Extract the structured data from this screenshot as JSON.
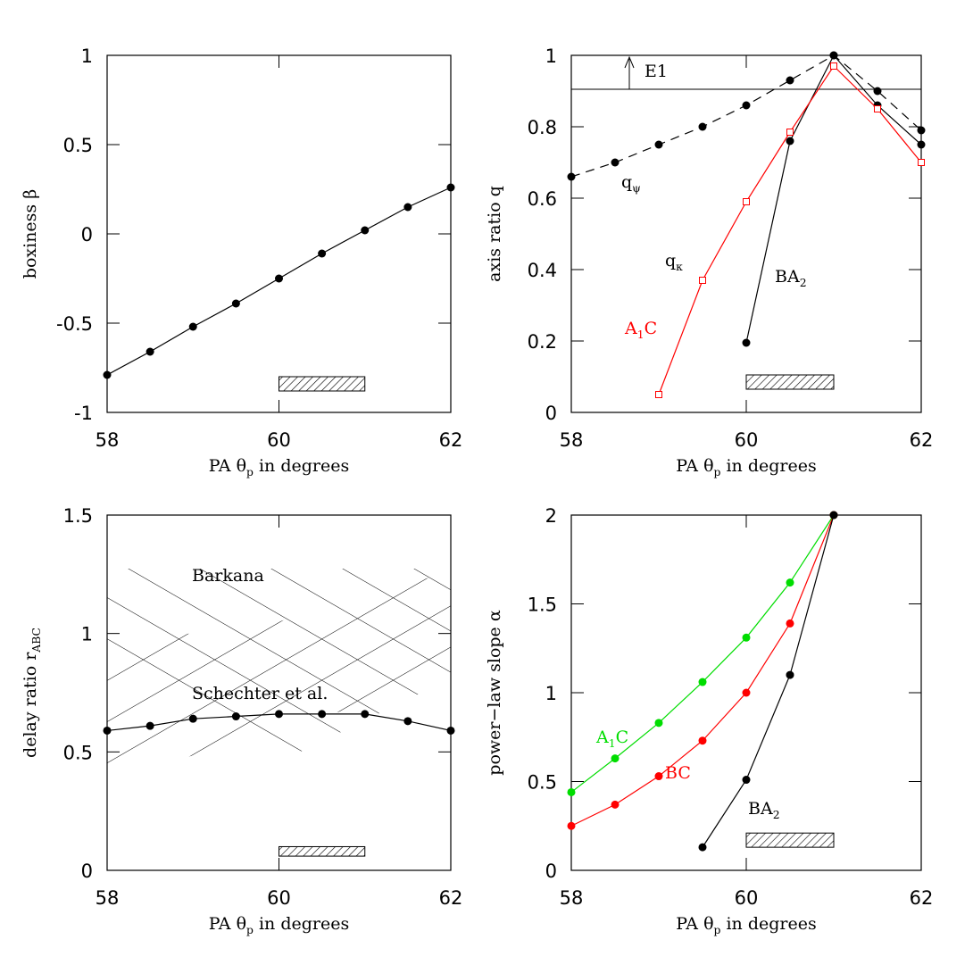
{
  "chart_data": [
    {
      "type": "line",
      "xlabel": {
        "text": "PA θ",
        "sub": "p",
        "after": " in degrees"
      },
      "ylabel": {
        "text": "boxiness  β"
      },
      "xlim": [
        58,
        62
      ],
      "ylim": [
        -1,
        1
      ],
      "xticks": [
        58,
        60,
        62
      ],
      "yticks": [
        -1,
        -0.5,
        0,
        0.5,
        1
      ],
      "series": [
        {
          "color": "#000000",
          "marker": "circle",
          "x": [
            58,
            58.5,
            59,
            59.5,
            60,
            60.5,
            61,
            61.5,
            62
          ],
          "values": [
            -0.79,
            -0.66,
            -0.52,
            -0.39,
            -0.25,
            -0.11,
            0.02,
            0.15,
            0.26
          ]
        }
      ],
      "hatched_box": {
        "x": [
          60,
          61
        ],
        "y": [
          -0.88,
          -0.8
        ]
      },
      "annotations": []
    },
    {
      "type": "line",
      "xlabel": {
        "text": "PA θ",
        "sub": "p",
        "after": " in degrees"
      },
      "ylabel": {
        "text": "axis ratio  q"
      },
      "xlim": [
        58,
        62
      ],
      "ylim": [
        0,
        1
      ],
      "xticks": [
        58,
        60,
        62
      ],
      "yticks": [
        0,
        0.2,
        0.4,
        0.6,
        0.8,
        1
      ],
      "hline": 0.905,
      "series": [
        {
          "color": "#000000",
          "marker": "circle",
          "dashed": true,
          "x": [
            58,
            58.5,
            59,
            59.5,
            60,
            60.5,
            61,
            61.5,
            62
          ],
          "values": [
            0.66,
            0.7,
            0.75,
            0.8,
            0.86,
            0.93,
            1.0,
            0.9,
            0.79
          ]
        },
        {
          "color": "#000000",
          "marker": "circle",
          "x": [
            60,
            60.5,
            61,
            61.5,
            62
          ],
          "values": [
            0.195,
            0.76,
            1.0,
            0.86,
            0.75
          ]
        },
        {
          "color": "#ff0000",
          "marker": "square",
          "x": [
            59,
            59.5,
            60,
            60.5,
            61,
            61.5,
            62
          ],
          "values": [
            0.05,
            0.37,
            0.59,
            0.785,
            0.97,
            0.85,
            0.7
          ]
        }
      ],
      "hatched_box": {
        "x": [
          60,
          61
        ],
        "y": [
          0.065,
          0.105
        ]
      },
      "annotations": [
        {
          "text": "E1",
          "color": "#000000"
        },
        {
          "text": "q",
          "sub": "ψ",
          "color": "#000000"
        },
        {
          "text": "q",
          "sub": "κ",
          "color": "#000000"
        },
        {
          "text": "BA",
          "sub": "2",
          "color": "#000000"
        },
        {
          "text": "A",
          "sub": "1",
          "after": "C",
          "color": "#ff0000"
        }
      ]
    },
    {
      "type": "line",
      "xlabel": {
        "text": "PA θ",
        "sub": "p",
        "after": " in degrees"
      },
      "ylabel": {
        "text": "delay ratio  r",
        "sub": "ABC"
      },
      "xlim": [
        58,
        62
      ],
      "ylim": [
        0,
        1.5
      ],
      "xticks": [
        58,
        60,
        62
      ],
      "yticks": [
        0,
        0.5,
        1,
        1.5
      ],
      "series": [
        {
          "color": "#000000",
          "marker": "circle",
          "x": [
            58,
            58.5,
            59,
            59.5,
            60,
            60.5,
            61,
            61.5,
            62
          ],
          "values": [
            0.59,
            0.61,
            0.64,
            0.65,
            0.66,
            0.66,
            0.66,
            0.63,
            0.59
          ]
        }
      ],
      "hatched_box": {
        "x": [
          60,
          61
        ],
        "y": [
          0.06,
          0.1
        ]
      },
      "annotations": [
        {
          "text": "Barkana",
          "color": "#000000"
        },
        {
          "text": "Schechter et al.",
          "color": "#000000"
        }
      ]
    },
    {
      "type": "line",
      "xlabel": {
        "text": "PA θ",
        "sub": "p",
        "after": " in degrees"
      },
      "ylabel": {
        "text": "power−law slope  α"
      },
      "xlim": [
        58,
        62
      ],
      "ylim": [
        0,
        2
      ],
      "xticks": [
        58,
        60,
        62
      ],
      "yticks": [
        0,
        0.5,
        1,
        1.5,
        2
      ],
      "series": [
        {
          "color": "#00dd00",
          "marker": "circle",
          "x": [
            58,
            58.5,
            59,
            59.5,
            60,
            60.5,
            61
          ],
          "values": [
            0.44,
            0.63,
            0.83,
            1.06,
            1.31,
            1.62,
            2.0
          ]
        },
        {
          "color": "#ff0000",
          "marker": "circle",
          "x": [
            58,
            58.5,
            59,
            59.5,
            60,
            60.5,
            61
          ],
          "values": [
            0.25,
            0.37,
            0.53,
            0.73,
            1.0,
            1.39,
            2.0
          ]
        },
        {
          "color": "#000000",
          "marker": "circle",
          "x": [
            59.5,
            60,
            60.5,
            61
          ],
          "values": [
            0.13,
            0.51,
            1.1,
            2.0
          ]
        }
      ],
      "hatched_box": {
        "x": [
          60,
          61
        ],
        "y": [
          0.13,
          0.21
        ]
      },
      "annotations": [
        {
          "text": "A",
          "sub": "1",
          "after": "C",
          "color": "#00dd00"
        },
        {
          "text": "BC",
          "color": "#ff0000"
        },
        {
          "text": "BA",
          "sub": "2",
          "color": "#000000"
        }
      ]
    }
  ]
}
